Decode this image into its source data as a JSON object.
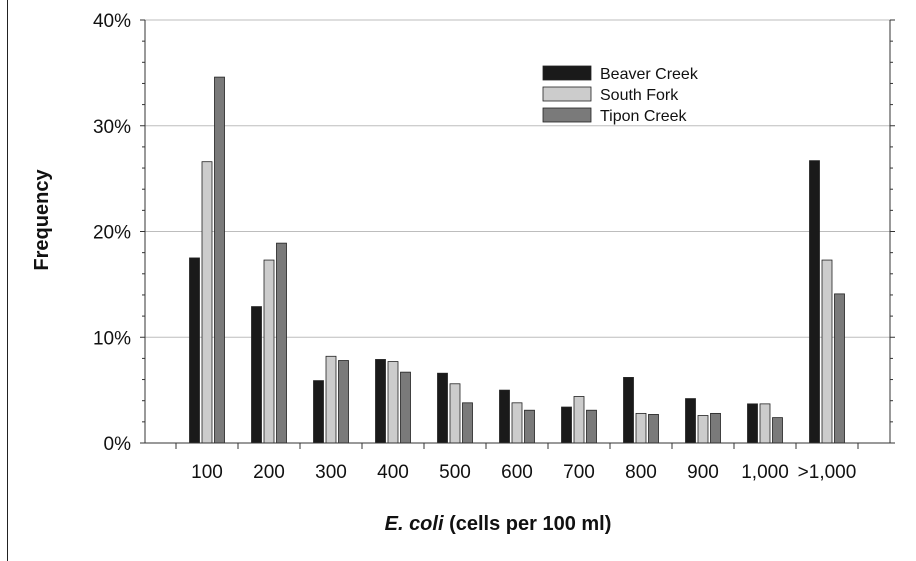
{
  "chart_data": {
    "type": "bar",
    "title": "",
    "ylabel": "Frequency",
    "xlabel_italic": "E. coli",
    "xlabel_rest": " (cells per 100 ml)",
    "ylim": [
      0,
      40
    ],
    "yticks": [
      "0%",
      "10%",
      "20%",
      "30%",
      "40%"
    ],
    "grid": true,
    "legend_position": "top-right",
    "categories": [
      "100",
      "200",
      "300",
      "400",
      "500",
      "600",
      "700",
      "800",
      "900",
      "1,000",
      ">1,000"
    ],
    "series": [
      {
        "name": "Beaver Creek",
        "color": "#1a1a1a",
        "values": [
          17.5,
          12.9,
          5.9,
          7.9,
          6.6,
          5.0,
          3.4,
          6.2,
          4.2,
          3.7,
          26.7
        ]
      },
      {
        "name": "South Fork",
        "color": "#cccccc",
        "values": [
          26.6,
          17.3,
          8.2,
          7.7,
          5.6,
          3.8,
          4.4,
          2.8,
          2.6,
          3.7,
          17.3
        ]
      },
      {
        "name": "Tipon Creek",
        "color": "#7a7a7a",
        "values": [
          34.6,
          18.9,
          7.8,
          6.7,
          3.8,
          3.1,
          3.1,
          2.7,
          2.8,
          2.4,
          14.1
        ]
      }
    ]
  }
}
